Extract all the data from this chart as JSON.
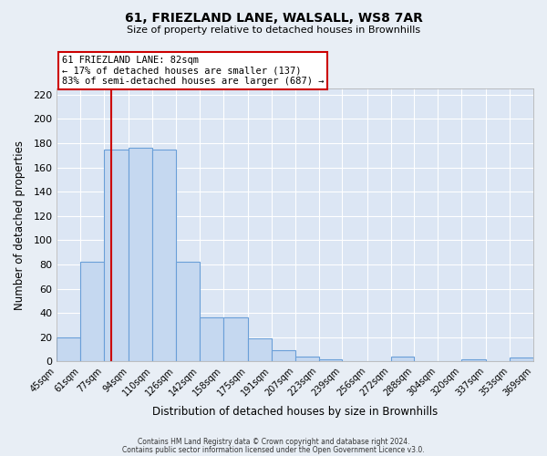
{
  "title": "61, FRIEZLAND LANE, WALSALL, WS8 7AR",
  "subtitle": "Size of property relative to detached houses in Brownhills",
  "xlabel": "Distribution of detached houses by size in Brownhills",
  "ylabel": "Number of detached properties",
  "bin_edges": [
    45,
    61,
    77,
    94,
    110,
    126,
    142,
    158,
    175,
    191,
    207,
    223,
    239,
    256,
    272,
    288,
    304,
    320,
    337,
    353,
    369
  ],
  "bar_heights": [
    20,
    82,
    175,
    176,
    175,
    82,
    36,
    36,
    19,
    9,
    4,
    2,
    0,
    0,
    4,
    0,
    0,
    2,
    0,
    3
  ],
  "bar_color": "#c5d8f0",
  "bar_edge_color": "#6a9fd8",
  "property_line_x": 82,
  "property_line_color": "#cc0000",
  "annotation_text": "61 FRIEZLAND LANE: 82sqm\n← 17% of detached houses are smaller (137)\n83% of semi-detached houses are larger (687) →",
  "annotation_box_color": "white",
  "annotation_box_edge": "#cc0000",
  "ylim": [
    0,
    225
  ],
  "yticks": [
    0,
    20,
    40,
    60,
    80,
    100,
    120,
    140,
    160,
    180,
    200,
    220
  ],
  "bar_labels": [
    "45sqm",
    "61sqm",
    "77sqm",
    "94sqm",
    "110sqm",
    "126sqm",
    "142sqm",
    "158sqm",
    "175sqm",
    "191sqm",
    "207sqm",
    "223sqm",
    "239sqm",
    "256sqm",
    "272sqm",
    "288sqm",
    "304sqm",
    "320sqm",
    "337sqm",
    "353sqm",
    "369sqm"
  ],
  "footer_line1": "Contains HM Land Registry data © Crown copyright and database right 2024.",
  "footer_line2": "Contains public sector information licensed under the Open Government Licence v3.0.",
  "bg_color": "#e8eef5",
  "plot_bg_color": "#dce6f4"
}
